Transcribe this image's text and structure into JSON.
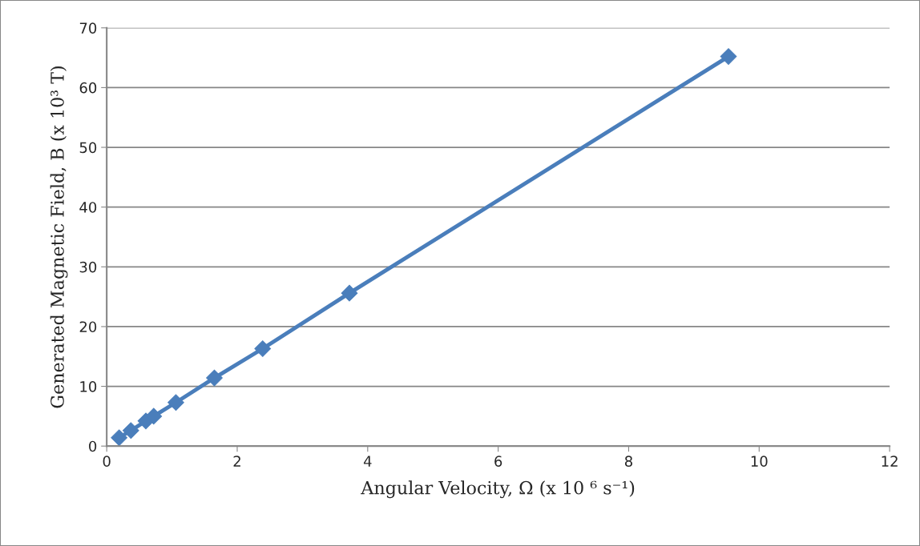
{
  "chart_data": {
    "type": "line",
    "xlabel": "Angular Velocity, Ω (x 10 ⁶ s⁻¹)",
    "ylabel": "Generated Magnetic Field, B (x 10³ T)",
    "x": [
      0.19,
      0.37,
      0.6,
      0.72,
      1.06,
      1.65,
      2.39,
      3.72,
      9.53
    ],
    "series": [
      {
        "color": "#4a7ebb",
        "values": [
          1.4,
          2.6,
          4.2,
          5.0,
          7.3,
          11.4,
          16.3,
          25.6,
          65.2
        ]
      }
    ],
    "xlim": [
      0,
      12
    ],
    "xticks": [
      0,
      2,
      4,
      6,
      8,
      10,
      12
    ],
    "ylim": [
      0,
      70
    ],
    "yticks": [
      0,
      10,
      20,
      30,
      40,
      50,
      60,
      70
    ],
    "grid": "y",
    "marker": "diamond",
    "line_style": "solid"
  }
}
